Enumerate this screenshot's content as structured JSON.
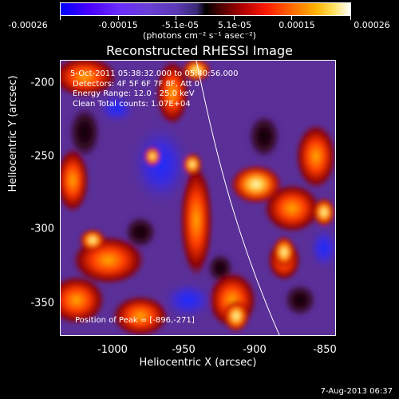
{
  "colorbar": {
    "ticks": [
      "-0.00026",
      "-0.00015",
      "-5.1e-05",
      "5.1e-05",
      "0.00015",
      "0.00026"
    ],
    "unit_label": "(photons cm⁻² s⁻¹ asec⁻²)"
  },
  "plot": {
    "title": "Reconstructed RHESSI Image",
    "info_lines": [
      "5-Oct-2011 05:38:32.000 to 05:40:56.000",
      "Detectors: 4F 5F 6F 7F 8F, Att 0",
      "Energy Range: 12.0 - 25.0 keV",
      "Clean     Total counts: 1.07E+04"
    ],
    "peak_label": "Position of Peak = [-896,-271]"
  },
  "axes": {
    "x_label": "Heliocentric X (arcsec)",
    "y_label": "Heliocentric Y (arcsec)",
    "x_ticks": [
      "-1000",
      "-950",
      "-900",
      "-850"
    ],
    "y_ticks": [
      "-200",
      "-250",
      "-300",
      "-350"
    ]
  },
  "footer": {
    "timestamp": "7-Aug-2013 06:37"
  }
}
